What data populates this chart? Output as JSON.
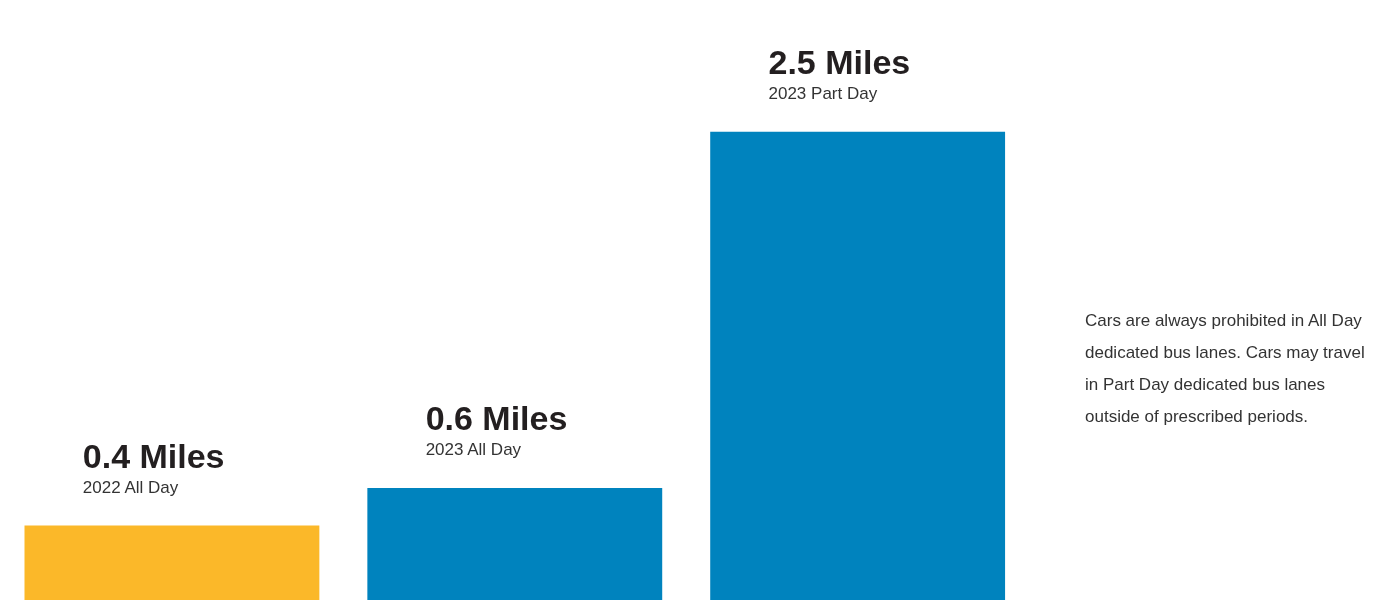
{
  "chart_data": {
    "type": "bar",
    "categories": [
      "2022 All Day",
      "2023 All Day",
      "2023 Part Day"
    ],
    "values": [
      0.4,
      0.6,
      2.5
    ],
    "colors": [
      "#fbb829",
      "#0083be",
      "#0083be"
    ],
    "value_labels": [
      "0.4 Miles",
      "0.6 Miles",
      "2.5 Miles"
    ],
    "tick_labels": false,
    "grid": false,
    "annotations": [
      "Cars are always prohibited in All Day dedicated bus lanes. Cars may travel in Part Day dedicated bus lanes outside of prescribed periods."
    ]
  }
}
